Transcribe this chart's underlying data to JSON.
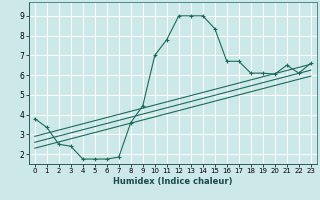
{
  "xlabel": "Humidex (Indice chaleur)",
  "bg_color": "#cde8e8",
  "grid_color": "#ffffff",
  "line_color": "#1a6b5a",
  "xlim": [
    -0.5,
    23.5
  ],
  "ylim": [
    1.5,
    9.7
  ],
  "xticks": [
    0,
    1,
    2,
    3,
    4,
    5,
    6,
    7,
    8,
    9,
    10,
    11,
    12,
    13,
    14,
    15,
    16,
    17,
    18,
    19,
    20,
    21,
    22,
    23
  ],
  "yticks": [
    2,
    3,
    4,
    5,
    6,
    7,
    8,
    9
  ],
  "main_x": [
    0,
    1,
    2,
    3,
    4,
    5,
    6,
    7,
    8,
    9,
    10,
    11,
    12,
    13,
    14,
    15,
    16,
    17,
    18,
    19,
    20,
    21,
    22,
    23
  ],
  "main_y": [
    3.8,
    3.35,
    2.5,
    2.4,
    1.75,
    1.75,
    1.75,
    1.85,
    3.6,
    4.45,
    7.0,
    7.8,
    9.0,
    9.0,
    9.0,
    8.35,
    6.7,
    6.7,
    6.1,
    6.1,
    6.05,
    6.5,
    6.1,
    6.6
  ],
  "line1_x": [
    0,
    23
  ],
  "line1_y": [
    2.9,
    6.55
  ],
  "line2_x": [
    0,
    23
  ],
  "line2_y": [
    2.6,
    6.25
  ],
  "line3_x": [
    0,
    23
  ],
  "line3_y": [
    2.3,
    5.95
  ]
}
